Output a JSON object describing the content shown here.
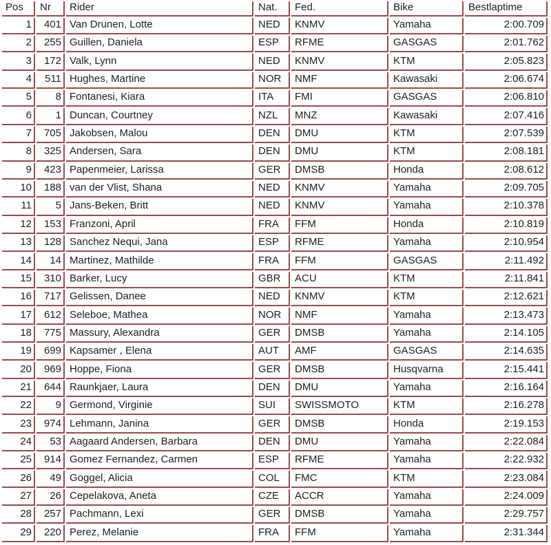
{
  "colors": {
    "border": "#9b4a4a",
    "text": "#1e1e1e",
    "background": "#ffffff"
  },
  "table": {
    "headers": [
      "Pos",
      "Nr",
      "Rider",
      "Nat.",
      "Fed.",
      "Bike",
      "Bestlaptime"
    ],
    "rows": [
      {
        "pos": "1",
        "nr": "401",
        "rider": "Van Drunen, Lotte",
        "nat": "NED",
        "fed": "KNMV",
        "bike": "Yamaha",
        "bestlaptime": "2:00.709"
      },
      {
        "pos": "2",
        "nr": "255",
        "rider": "Guillen, Daniela",
        "nat": "ESP",
        "fed": "RFME",
        "bike": "GASGAS",
        "bestlaptime": "2:01.762"
      },
      {
        "pos": "3",
        "nr": "172",
        "rider": "Valk, Lynn",
        "nat": "NED",
        "fed": "KNMV",
        "bike": "KTM",
        "bestlaptime": "2:05.823"
      },
      {
        "pos": "4",
        "nr": "511",
        "rider": "Hughes, Martine",
        "nat": "NOR",
        "fed": "NMF",
        "bike": "Kawasaki",
        "bestlaptime": "2:06.674"
      },
      {
        "pos": "5",
        "nr": "8",
        "rider": "Fontanesi, Kiara",
        "nat": "ITA",
        "fed": "FMI",
        "bike": "GASGAS",
        "bestlaptime": "2:06.810"
      },
      {
        "pos": "6",
        "nr": "1",
        "rider": "Duncan, Courtney",
        "nat": "NZL",
        "fed": "MNZ",
        "bike": "Kawasaki",
        "bestlaptime": "2:07.416"
      },
      {
        "pos": "7",
        "nr": "705",
        "rider": "Jakobsen, Malou",
        "nat": "DEN",
        "fed": "DMU",
        "bike": "KTM",
        "bestlaptime": "2:07.539"
      },
      {
        "pos": "8",
        "nr": "325",
        "rider": "Andersen, Sara",
        "nat": "DEN",
        "fed": "DMU",
        "bike": "KTM",
        "bestlaptime": "2:08.181"
      },
      {
        "pos": "9",
        "nr": "423",
        "rider": "Papenmeier, Larissa",
        "nat": "GER",
        "fed": "DMSB",
        "bike": "Honda",
        "bestlaptime": "2:08.612"
      },
      {
        "pos": "10",
        "nr": "188",
        "rider": "van der Vlist, Shana",
        "nat": "NED",
        "fed": "KNMV",
        "bike": "Yamaha",
        "bestlaptime": "2:09.705"
      },
      {
        "pos": "11",
        "nr": "5",
        "rider": "Jans-Beken, Britt",
        "nat": "NED",
        "fed": "KNMV",
        "bike": "Yamaha",
        "bestlaptime": "2:10.378"
      },
      {
        "pos": "12",
        "nr": "153",
        "rider": "Franzoni, April",
        "nat": "FRA",
        "fed": "FFM",
        "bike": "Honda",
        "bestlaptime": "2:10.819"
      },
      {
        "pos": "13",
        "nr": "128",
        "rider": "Sanchez Nequi, Jana",
        "nat": "ESP",
        "fed": "RFME",
        "bike": "Yamaha",
        "bestlaptime": "2:10.954"
      },
      {
        "pos": "14",
        "nr": "14",
        "rider": "Martinez, Mathilde",
        "nat": "FRA",
        "fed": "FFM",
        "bike": "GASGAS",
        "bestlaptime": "2:11.492"
      },
      {
        "pos": "15",
        "nr": "310",
        "rider": "Barker, Lucy",
        "nat": "GBR",
        "fed": "ACU",
        "bike": "KTM",
        "bestlaptime": "2:11.841"
      },
      {
        "pos": "16",
        "nr": "717",
        "rider": "Gelissen, Danee",
        "nat": "NED",
        "fed": "KNMV",
        "bike": "KTM",
        "bestlaptime": "2:12.621"
      },
      {
        "pos": "17",
        "nr": "612",
        "rider": "Seleboe, Mathea",
        "nat": "NOR",
        "fed": "NMF",
        "bike": "Yamaha",
        "bestlaptime": "2:13.473"
      },
      {
        "pos": "18",
        "nr": "775",
        "rider": "Massury, Alexandra",
        "nat": "GER",
        "fed": "DMSB",
        "bike": "Yamaha",
        "bestlaptime": "2:14.105"
      },
      {
        "pos": "19",
        "nr": "699",
        "rider": "Kapsamer , Elena",
        "nat": "AUT",
        "fed": "AMF",
        "bike": "GASGAS",
        "bestlaptime": "2:14.635"
      },
      {
        "pos": "20",
        "nr": "969",
        "rider": "Hoppe, Fiona",
        "nat": "GER",
        "fed": "DMSB",
        "bike": "Husqvarna",
        "bestlaptime": "2:15.441"
      },
      {
        "pos": "21",
        "nr": "644",
        "rider": "Raunkjaer, Laura",
        "nat": "DEN",
        "fed": "DMU",
        "bike": "Yamaha",
        "bestlaptime": "2:16.164"
      },
      {
        "pos": "22",
        "nr": "9",
        "rider": "Germond, Virginie",
        "nat": "SUI",
        "fed": "SWISSMOTO",
        "bike": "KTM",
        "bestlaptime": "2:16.278"
      },
      {
        "pos": "23",
        "nr": "974",
        "rider": "Lehmann, Janina",
        "nat": "GER",
        "fed": "DMSB",
        "bike": "Honda",
        "bestlaptime": "2:19.153"
      },
      {
        "pos": "24",
        "nr": "53",
        "rider": "Aagaard Andersen, Barbara",
        "nat": "DEN",
        "fed": "DMU",
        "bike": "Yamaha",
        "bestlaptime": "2:22.084"
      },
      {
        "pos": "25",
        "nr": "914",
        "rider": "Gomez Fernandez, Carmen",
        "nat": "ESP",
        "fed": "RFME",
        "bike": "Yamaha",
        "bestlaptime": "2:22.932"
      },
      {
        "pos": "26",
        "nr": "49",
        "rider": "Goggel, Alicia",
        "nat": "COL",
        "fed": "FMC",
        "bike": "KTM",
        "bestlaptime": "2:23.084"
      },
      {
        "pos": "27",
        "nr": "26",
        "rider": "Cepelakova, Aneta",
        "nat": "CZE",
        "fed": "ACCR",
        "bike": "Yamaha",
        "bestlaptime": "2:24.009"
      },
      {
        "pos": "28",
        "nr": "257",
        "rider": "Pachmann, Lexi",
        "nat": "GER",
        "fed": "DMSB",
        "bike": "Yamaha",
        "bestlaptime": "2:29.757"
      },
      {
        "pos": "29",
        "nr": "220",
        "rider": "Perez, Melanie",
        "nat": "FRA",
        "fed": "FFM",
        "bike": "Yamaha",
        "bestlaptime": "2:31.344"
      }
    ]
  }
}
